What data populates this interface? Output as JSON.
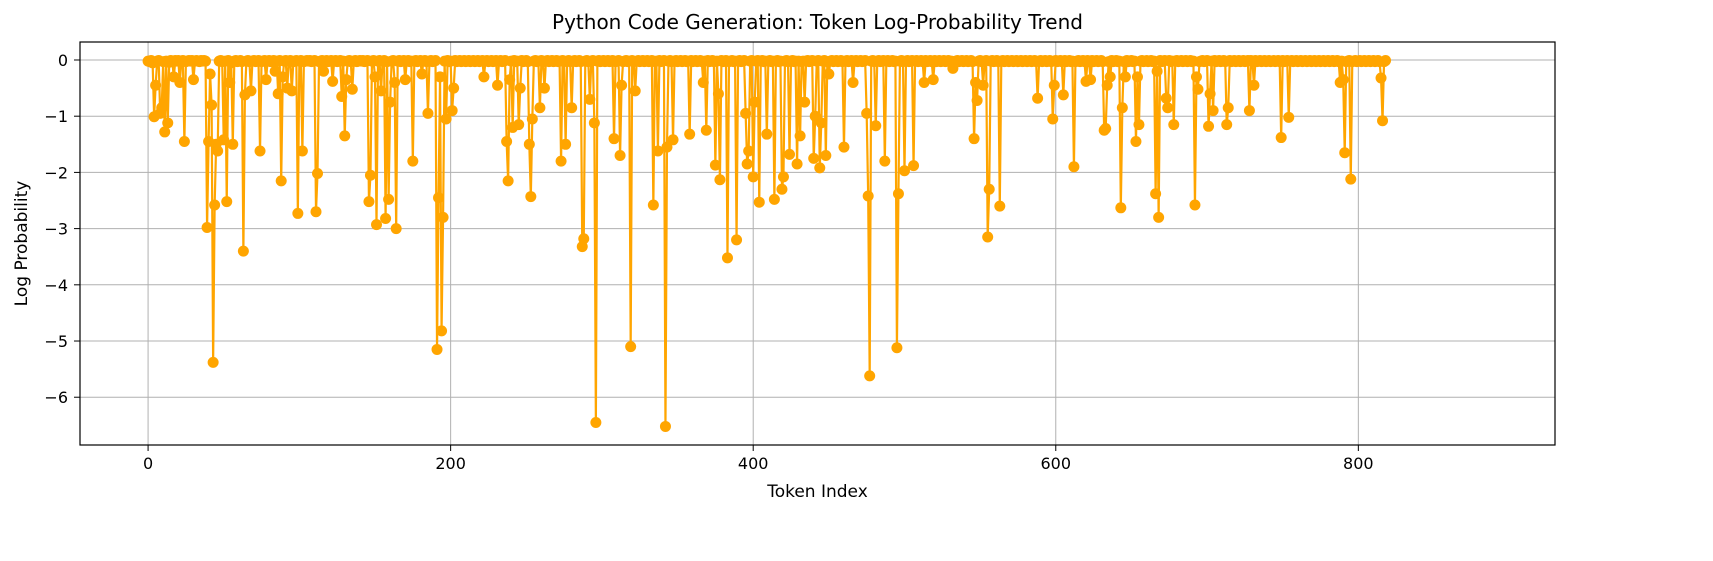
{
  "chart_data": {
    "type": "line",
    "title": "Python Code Generation: Token Log-Probability Trend",
    "xlabel": "Token Index",
    "ylabel": "Log Probability",
    "xlim": [
      -45,
      930
    ],
    "ylim": [
      -6.85,
      0.32
    ],
    "x_ticks": [
      0,
      200,
      400,
      600,
      800
    ],
    "x_tick_labels": [
      "0",
      "200",
      "400",
      "600",
      "800"
    ],
    "y_ticks": [
      0,
      -1,
      -2,
      -3,
      -4,
      -5,
      -6
    ],
    "y_tick_labels": [
      "0",
      "−1",
      "−2",
      "−3",
      "−4",
      "−5",
      "−6"
    ],
    "grid": true,
    "line_color": "#FFA500",
    "x_start": 0,
    "x_step": 1,
    "series": [
      {
        "values": [
          -0.02,
          -0.03,
          -0.01,
          -0.05,
          -1.01,
          -0.45,
          -0.02,
          -0.01,
          -0.95,
          -0.85,
          -0.03,
          -1.28,
          -0.02,
          -1.12,
          -0.04,
          -0.01,
          -0.02,
          -0.3,
          -0.01,
          -0.02,
          -0.01,
          -0.4,
          -0.02,
          -0.01,
          -1.45,
          -0.03,
          -0.02,
          -0.01,
          -0.02,
          -0.01,
          -0.35,
          -0.02,
          -0.01,
          -0.02,
          -0.03,
          -0.01,
          -0.02,
          -0.01,
          -0.02,
          -2.98,
          -1.45,
          -0.25,
          -0.8,
          -5.38,
          -2.58,
          -1.5,
          -1.62,
          -0.02,
          -0.01,
          -0.03,
          -1.42,
          -0.02,
          -2.52,
          -0.01,
          -0.4,
          -0.05,
          -1.5,
          -0.02,
          -0.01,
          -0.03,
          -0.02,
          -0.01,
          -0.03,
          -3.4,
          -0.62,
          -0.02,
          -0.01,
          -0.03,
          -0.55,
          -0.02,
          -0.01,
          -0.03,
          -0.02,
          -0.01,
          -1.62,
          -0.03,
          -0.02,
          -0.01,
          -0.35,
          -0.02,
          -0.01,
          -0.03,
          -0.02,
          -0.01,
          -0.2,
          -0.02,
          -0.6,
          -0.01,
          -2.15,
          -0.3,
          -0.02,
          -0.01,
          -0.5,
          -0.02,
          -0.01,
          -0.55,
          -0.03,
          -0.02,
          -0.01,
          -2.73,
          -0.02,
          -0.01,
          -1.62,
          -0.03,
          -0.02,
          -0.01,
          -0.02,
          -0.01,
          -0.03,
          -0.02,
          -0.01,
          -2.7,
          -2.02,
          -0.03,
          -0.02,
          -0.01,
          -0.2,
          -0.02,
          -0.01,
          -0.03,
          -0.02,
          -0.01,
          -0.38,
          -0.02,
          -0.01,
          -0.03,
          -0.02,
          -0.01,
          -0.65,
          -0.02,
          -1.35,
          -0.35,
          -0.02,
          -0.01,
          -0.03,
          -0.52,
          -0.02,
          -0.01,
          -0.03,
          -0.02,
          -0.01,
          -0.02,
          -0.01,
          -0.03,
          -0.02,
          -0.01,
          -2.52,
          -2.05,
          -0.02,
          -0.01,
          -0.3,
          -2.93,
          -0.02,
          -0.01,
          -0.55,
          -0.02,
          -0.01,
          -2.82,
          -0.03,
          -2.48,
          -0.75,
          -0.02,
          -0.01,
          -0.4,
          -3.0,
          -0.02,
          -0.01,
          -0.03,
          -0.02,
          -0.01,
          -0.35,
          -0.02,
          -0.01,
          -0.03,
          -0.02,
          -1.8,
          -0.02,
          -0.01,
          -0.03,
          -0.02,
          -0.01,
          -0.25,
          -0.02,
          -0.01,
          -0.03,
          -0.95,
          -0.02,
          -0.01,
          -0.03,
          -0.02,
          -0.01,
          -5.15,
          -2.45,
          -0.3,
          -4.82,
          -2.8,
          -0.02,
          -1.05,
          -0.01,
          -0.03,
          -0.02,
          -0.9,
          -0.5,
          -0.01,
          -0.03,
          -0.02,
          -0.01,
          -0.03,
          -0.02,
          -0.01,
          -0.03,
          -0.02,
          -0.01,
          -0.03,
          -0.02,
          -0.01,
          -0.03,
          -0.02,
          -0.01,
          -0.03,
          -0.02,
          -0.01,
          -0.3,
          -0.02,
          -0.01,
          -0.03,
          -0.02,
          -0.01,
          -0.03,
          -0.02,
          -0.01,
          -0.45,
          -0.02,
          -0.01,
          -0.03,
          -0.02,
          -0.01,
          -1.45,
          -2.15,
          -0.35,
          -0.02,
          -1.2,
          -0.01,
          -0.03,
          -0.02,
          -1.15,
          -0.5,
          -0.01,
          -0.03,
          -0.02,
          -0.01,
          -0.03,
          -1.5,
          -2.43,
          -1.05,
          -0.02,
          -0.01,
          -0.03,
          -0.02,
          -0.85,
          -0.01,
          -0.03,
          -0.5,
          -0.02,
          -0.01,
          -0.03,
          -0.02,
          -0.01,
          -0.03,
          -0.02,
          -0.01,
          -0.03,
          -0.02,
          -1.8,
          -0.01,
          -0.03,
          -1.5,
          -0.02,
          -0.01,
          -0.03,
          -0.85,
          -0.02,
          -0.01,
          -0.03,
          -0.02,
          -0.01,
          -0.03,
          -3.32,
          -3.18,
          -0.02,
          -0.01,
          -0.03,
          -0.7,
          -0.02,
          -0.01,
          -1.12,
          -6.45,
          -0.02,
          -0.01,
          -0.03,
          -0.02,
          -0.01,
          -0.03,
          -0.02,
          -0.01,
          -0.03,
          -0.02,
          -0.01,
          -1.4,
          -0.03,
          -0.02,
          -0.01,
          -1.7,
          -0.45,
          -0.03,
          -0.02,
          -0.01,
          -0.03,
          -0.02,
          -5.1,
          -0.01,
          -0.03,
          -0.55,
          -0.02,
          -0.01,
          -0.03,
          -0.02,
          -0.01,
          -0.03,
          -0.02,
          -0.01,
          -0.03,
          -0.02,
          -0.01,
          -2.58,
          -0.03,
          -0.02,
          -1.62,
          -0.01,
          -0.03,
          -0.02,
          -0.01,
          -6.52,
          -1.55,
          -0.02,
          -0.01,
          -0.03,
          -1.42,
          -0.02,
          -0.01,
          -0.03,
          -0.02,
          -0.01,
          -0.03,
          -0.02,
          -0.01,
          -0.03,
          -0.02,
          -1.32,
          -0.01,
          -0.03,
          -0.02,
          -0.01,
          -0.03,
          -0.02,
          -0.01,
          -0.03,
          -0.4,
          -0.02,
          -1.25,
          -0.01,
          -0.03,
          -0.02,
          -0.01,
          -0.03,
          -1.87,
          -0.02,
          -0.6,
          -2.13,
          -0.01,
          -0.03,
          -0.02,
          -0.01,
          -3.52,
          -0.03,
          -0.02,
          -0.01,
          -0.03,
          -0.02,
          -3.2,
          -0.02,
          -0.01,
          -0.03,
          -0.02,
          -0.01,
          -0.95,
          -1.85,
          -1.62,
          -0.02,
          -0.01,
          -2.08,
          -0.75,
          -0.02,
          -0.01,
          -2.53,
          -0.02,
          -0.01,
          -0.03,
          -0.02,
          -1.32,
          -0.02,
          -0.01,
          -0.03,
          -0.02,
          -2.48,
          -0.02,
          -0.01,
          -0.03,
          -0.02,
          -2.3,
          -2.08,
          -0.02,
          -0.01,
          -0.03,
          -1.68,
          -0.02,
          -0.01,
          -0.03,
          -0.02,
          -1.85,
          -0.02,
          -1.35,
          -0.03,
          -0.02,
          -0.75,
          -0.02,
          -0.01,
          -0.03,
          -0.02,
          -0.01,
          -1.75,
          -1.0,
          -0.02,
          -0.01,
          -1.92,
          -1.12,
          -0.02,
          -0.01,
          -1.7,
          -0.03,
          -0.25,
          -0.02,
          -0.01,
          -0.03,
          -0.02,
          -0.01,
          -0.03,
          -0.02,
          -0.01,
          -0.03,
          -1.55,
          -0.02,
          -0.01,
          -0.03,
          -0.02,
          -0.01,
          -0.4,
          -0.02,
          -0.01,
          -0.03,
          -0.02,
          -0.01,
          -0.03,
          -0.02,
          -0.01,
          -0.95,
          -2.42,
          -5.62,
          -0.02,
          -0.01,
          -0.03,
          -1.17,
          -0.02,
          -0.01,
          -0.03,
          -0.02,
          -0.01,
          -1.8,
          -0.02,
          -0.01,
          -0.03,
          -0.02,
          -0.01,
          -0.03,
          -0.02,
          -5.12,
          -2.38,
          -0.02,
          -0.01,
          -0.03,
          -1.97,
          -0.02,
          -0.01,
          -0.03,
          -0.02,
          -0.01,
          -1.88,
          -0.02,
          -0.01,
          -0.03,
          -0.02,
          -0.01,
          -0.03,
          -0.4,
          -0.01,
          -0.03,
          -0.02,
          -0.01,
          -0.03,
          -0.35,
          -0.01,
          -0.03,
          -0.02,
          -0.01,
          -0.03,
          -0.02,
          -0.01,
          -0.03,
          -0.02,
          -0.01,
          -0.03,
          -0.02,
          -0.15,
          -0.03,
          -0.02,
          -0.01,
          -0.03,
          -0.02,
          -0.01,
          -0.03,
          -0.02,
          -0.01,
          -0.03,
          -0.02,
          -0.01,
          -0.03,
          -1.4,
          -0.4,
          -0.72,
          -0.02,
          -0.01,
          -0.03,
          -0.45,
          -0.02,
          -0.01,
          -3.15,
          -2.3,
          -0.02,
          -0.01,
          -0.03,
          -0.02,
          -0.01,
          -0.03,
          -2.6,
          -0.02,
          -0.01,
          -0.03,
          -0.02,
          -0.01,
          -0.03,
          -0.02,
          -0.01,
          -0.03,
          -0.02,
          -0.01,
          -0.03,
          -0.02,
          -0.01,
          -0.03,
          -0.02,
          -0.01,
          -0.03,
          -0.02,
          -0.01,
          -0.03,
          -0.02,
          -0.01,
          -0.03,
          -0.68,
          -0.02,
          -0.01,
          -0.03,
          -0.02,
          -0.01,
          -0.03,
          -0.02,
          -0.01,
          -0.03,
          -1.05,
          -0.45,
          -0.01,
          -0.03,
          -0.02,
          -0.01,
          -0.03,
          -0.62,
          -0.01,
          -0.03,
          -0.02,
          -0.01,
          -0.03,
          -0.02,
          -1.9,
          -0.03,
          -0.02,
          -0.01,
          -0.03,
          -0.02,
          -0.01,
          -0.03,
          -0.38,
          -0.01,
          -0.03,
          -0.35,
          -0.01,
          -0.03,
          -0.02,
          -0.01,
          -0.03,
          -0.02,
          -0.01,
          -0.03,
          -1.25,
          -1.22,
          -0.45,
          -0.03,
          -0.3,
          -0.01,
          -0.03,
          -0.02,
          -0.01,
          -0.03,
          -0.02,
          -2.63,
          -0.85,
          -0.03,
          -0.3,
          -0.01,
          -0.03,
          -0.02,
          -0.01,
          -0.03,
          -0.02,
          -1.45,
          -0.3,
          -1.15,
          -0.02,
          -0.01,
          -0.03,
          -0.02,
          -0.01,
          -0.03,
          -0.02,
          -0.01,
          -0.03,
          -0.02,
          -2.38,
          -0.2,
          -2.8,
          -0.01,
          -0.03,
          -0.02,
          -0.01,
          -0.68,
          -0.85,
          -0.01,
          -0.03,
          -0.02,
          -1.15,
          -0.02,
          -0.01,
          -0.03,
          -0.02,
          -0.01,
          -0.03,
          -0.02,
          -0.01,
          -0.03,
          -0.02,
          -0.01,
          -0.03,
          -0.02,
          -2.58,
          -0.3,
          -0.52,
          -0.03,
          -0.02,
          -0.01,
          -0.03,
          -0.02,
          -0.01,
          -1.18,
          -0.6,
          -0.02,
          -0.9,
          -0.01,
          -0.03,
          -0.02,
          -0.01,
          -0.03,
          -0.02,
          -0.01,
          -0.03,
          -1.15,
          -0.85,
          -0.01,
          -0.03,
          -0.02,
          -0.01,
          -0.03,
          -0.02,
          -0.01,
          -0.03,
          -0.02,
          -0.01,
          -0.03,
          -0.02,
          -0.01,
          -0.9,
          -0.01,
          -0.03,
          -0.45,
          -0.01,
          -0.03,
          -0.02,
          -0.01,
          -0.03,
          -0.02,
          -0.01,
          -0.03,
          -0.02,
          -0.01,
          -0.03,
          -0.02,
          -0.01,
          -0.03,
          -0.02,
          -0.01,
          -0.03,
          -1.38,
          -0.01,
          -0.03,
          -0.02,
          -0.01,
          -1.02,
          -0.02,
          -0.01,
          -0.03,
          -0.02,
          -0.01,
          -0.03,
          -0.02,
          -0.01,
          -0.03,
          -0.02,
          -0.01,
          -0.03,
          -0.02,
          -0.01,
          -0.03,
          -0.02,
          -0.01,
          -0.03,
          -0.02,
          -0.01,
          -0.03,
          -0.02,
          -0.01,
          -0.03,
          -0.02,
          -0.01,
          -0.03,
          -0.02,
          -0.01,
          -0.03,
          -0.02,
          -0.01,
          -0.03,
          -0.4,
          -0.02,
          -0.35,
          -1.65,
          -0.03,
          -0.02,
          -0.01,
          -2.12,
          -0.03,
          -0.02,
          -0.01,
          -0.03,
          -0.02,
          -0.01,
          -0.03,
          -0.02,
          -0.01,
          -0.03,
          -0.02,
          -0.01,
          -0.03,
          -0.02,
          -0.01,
          -0.03,
          -0.02,
          -0.01,
          -0.03,
          -0.32,
          -1.08,
          -0.03,
          -0.01
        ]
      }
    ]
  }
}
